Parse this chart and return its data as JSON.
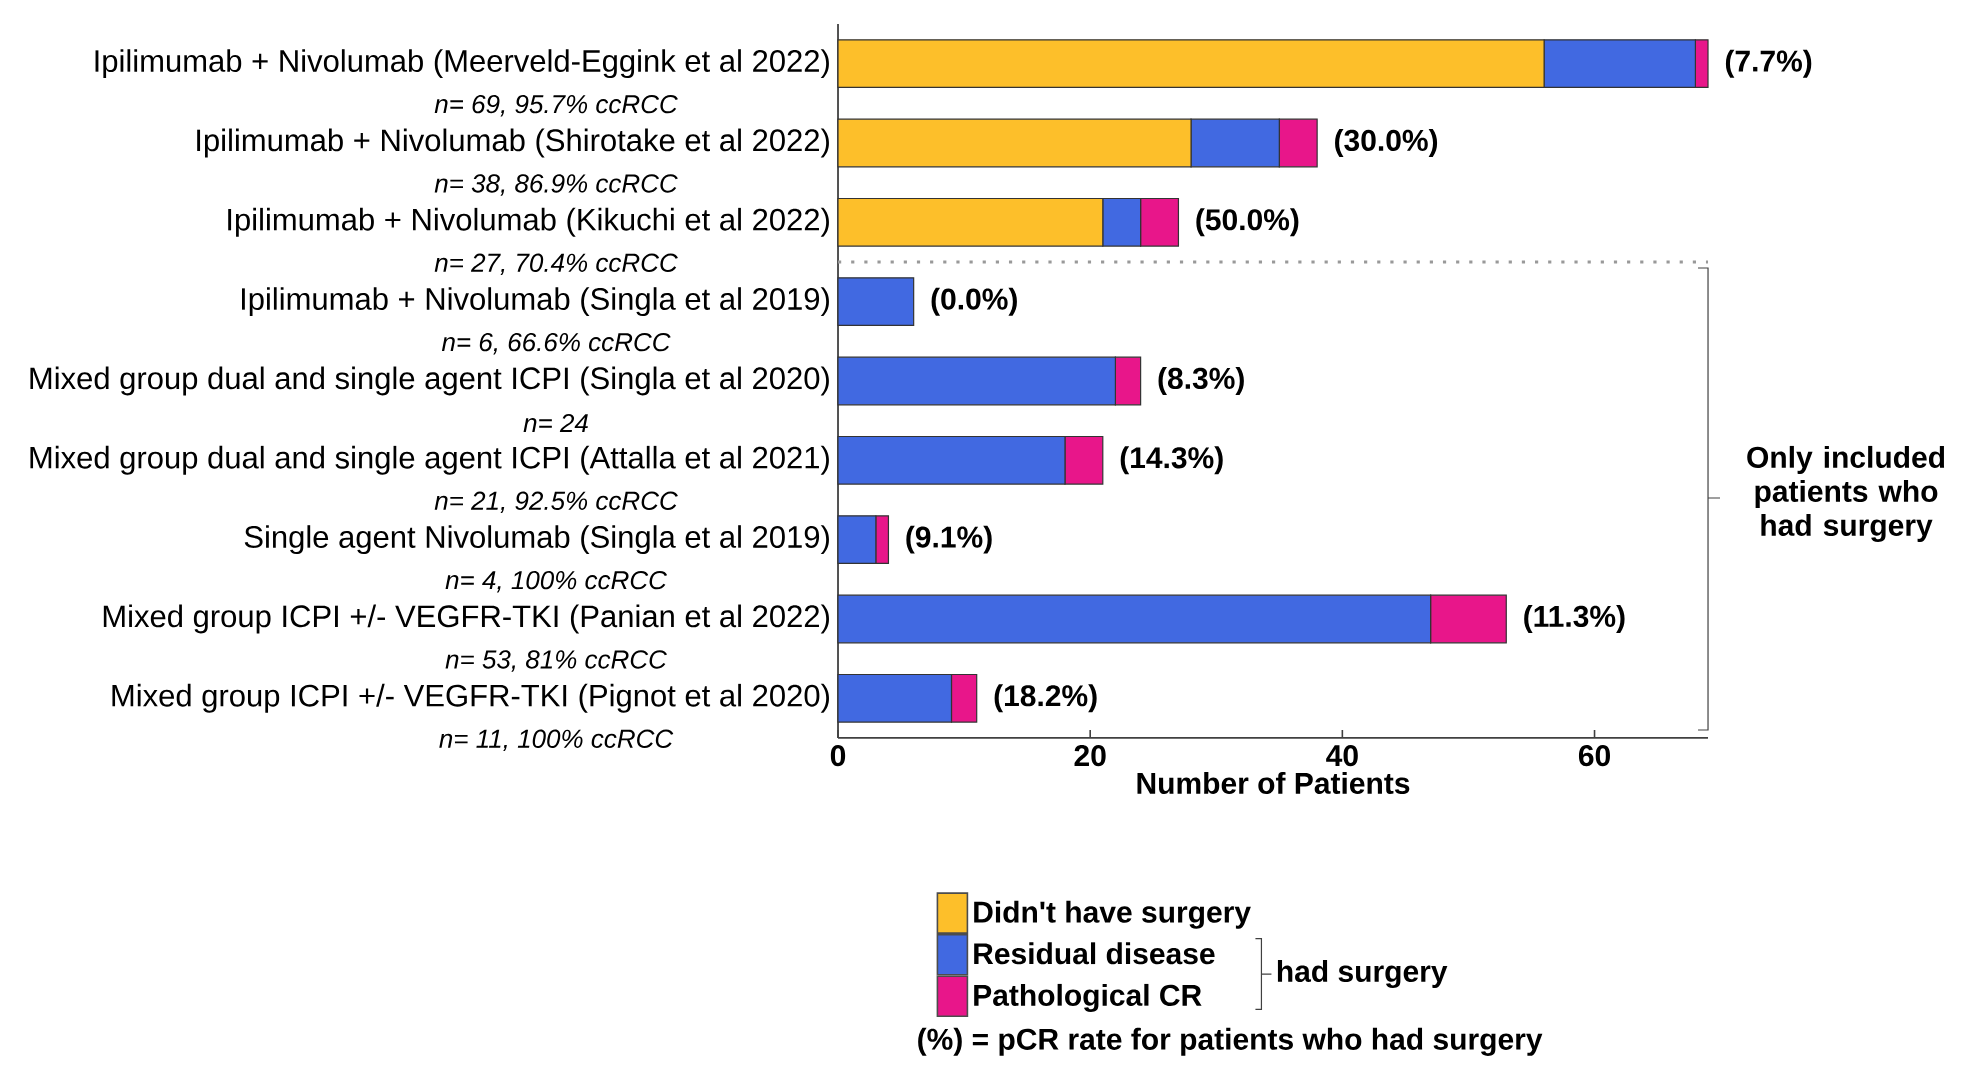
{
  "chart_data": {
    "type": "bar",
    "orientation": "horizontal",
    "stacked": true,
    "categories": [
      "Ipilimumab + Nivolumab (Meerveld-Eggink et al 2022)",
      "Ipilimumab + Nivolumab (Shirotake et al 2022)",
      "Ipilimumab + Nivolumab (Kikuchi et al 2022)",
      "Ipilimumab + Nivolumab (Singla et al 2019)",
      "Mixed group dual and single agent ICPI (Singla et al 2020)",
      "Mixed group dual and single agent ICPI (Attalla et al 2021)",
      "Single agent Nivolumab (Singla et al 2019)",
      "Mixed group ICPI +/- VEGFR-TKI (Panian et al 2022)",
      "Mixed group ICPI +/- VEGFR-TKI (Pignot et al 2020)"
    ],
    "series": [
      {
        "name": "Didn't have surgery",
        "color": "#fdbf2a",
        "values": [
          56,
          28,
          21,
          null,
          null,
          null,
          null,
          null,
          null
        ]
      },
      {
        "name": "Residual disease",
        "color": "#4169e1",
        "values": [
          12,
          7,
          3,
          6,
          22,
          18,
          3,
          47,
          9
        ]
      },
      {
        "name": "Pathological CR",
        "color": "#e8168a",
        "values": [
          1,
          3,
          3,
          0,
          2,
          3,
          1,
          6,
          2
        ]
      }
    ],
    "xlabel": "Number of Patients",
    "xlim": [
      0,
      69
    ],
    "xticks": [
      0,
      20,
      40,
      60
    ],
    "legend": "bottom",
    "annotations": [
      "n= 69, 95.7% ccRCC",
      "n= 38, 86.9% ccRCC",
      "n= 27, 70.4% ccRCC",
      "n= 6, 66.6% ccRCC",
      "n= 24",
      "n= 21, 92.5% ccRCC",
      "n= 4, 100% ccRCC",
      "n= 53, 81% ccRCC",
      "n= 11, 100% ccRCC",
      "Only included patients who had surgery",
      "had surgery",
      "(%) = pCR rate for patients who had surgery",
      {
        "text": "(7.7%)",
        "x": 69,
        "y": "Ipilimumab + Nivolumab (Meerveld-Eggink et al 2022)"
      },
      {
        "text": "(30.0%)",
        "x": 38,
        "y": "Ipilimumab + Nivolumab (Shirotake et al 2022)"
      },
      {
        "text": "(50.0%)",
        "x": 27,
        "y": "Ipilimumab + Nivolumab (Kikuchi et al 2022)"
      },
      {
        "text": "(0.0%)",
        "x": 6,
        "y": "Ipilimumab + Nivolumab (Singla et al 2019)"
      },
      {
        "text": "(8.3%)",
        "x": 24,
        "y": "Mixed group dual and single agent ICPI (Singla et al 2020)"
      },
      {
        "text": "(14.3%)",
        "x": 21,
        "y": "Mixed group dual and single agent ICPI (Attalla et al 2021)"
      },
      {
        "text": "(9.1%)",
        "x": 4,
        "y": "Single agent Nivolumab (Singla et al 2019)"
      },
      {
        "text": "(11.3%)",
        "x": 53,
        "y": "Mixed group ICPI +/- VEGFR-TKI (Panian et al 2022)"
      },
      {
        "text": "(18.2%)",
        "x": 11,
        "y": "Mixed group ICPI +/- VEGFR-TKI (Pignot et al 2020)"
      }
    ]
  }
}
